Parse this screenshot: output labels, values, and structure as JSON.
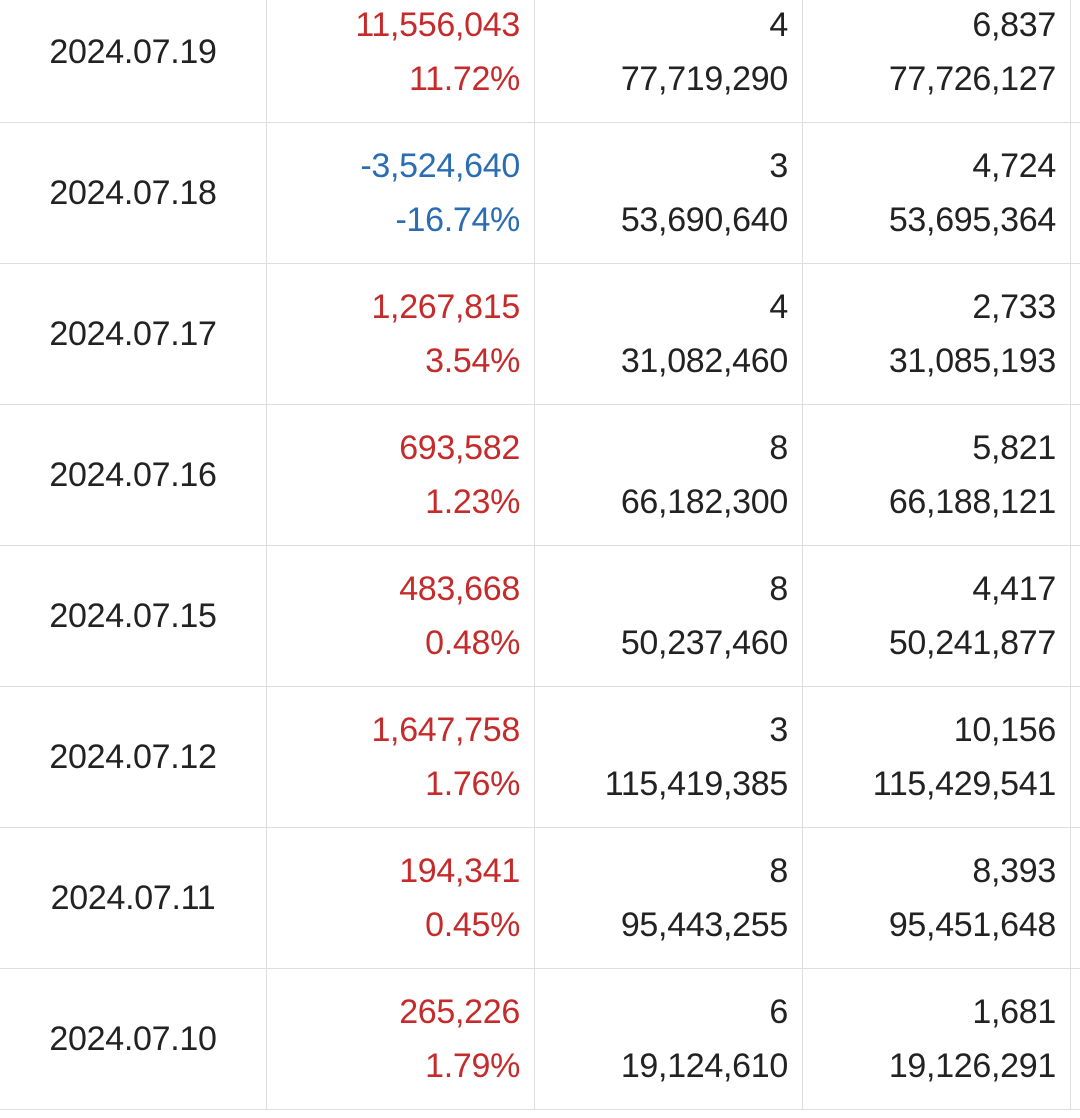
{
  "colors": {
    "up": "#c62b2b",
    "down": "#2a6db3",
    "text": "#222222",
    "grid": "#dedede"
  },
  "rows": [
    {
      "date": "2024.07.19",
      "change": "11,556,043",
      "change_pct": "11.72%",
      "direction": "up",
      "a_top": "4",
      "a_bottom": "77,719,290",
      "b_top": "6,837",
      "b_bottom": "77,726,127"
    },
    {
      "date": "2024.07.18",
      "change": "-3,524,640",
      "change_pct": "-16.74%",
      "direction": "down",
      "a_top": "3",
      "a_bottom": "53,690,640",
      "b_top": "4,724",
      "b_bottom": "53,695,364"
    },
    {
      "date": "2024.07.17",
      "change": "1,267,815",
      "change_pct": "3.54%",
      "direction": "up",
      "a_top": "4",
      "a_bottom": "31,082,460",
      "b_top": "2,733",
      "b_bottom": "31,085,193"
    },
    {
      "date": "2024.07.16",
      "change": "693,582",
      "change_pct": "1.23%",
      "direction": "up",
      "a_top": "8",
      "a_bottom": "66,182,300",
      "b_top": "5,821",
      "b_bottom": "66,188,121"
    },
    {
      "date": "2024.07.15",
      "change": "483,668",
      "change_pct": "0.48%",
      "direction": "up",
      "a_top": "8",
      "a_bottom": "50,237,460",
      "b_top": "4,417",
      "b_bottom": "50,241,877"
    },
    {
      "date": "2024.07.12",
      "change": "1,647,758",
      "change_pct": "1.76%",
      "direction": "up",
      "a_top": "3",
      "a_bottom": "115,419,385",
      "b_top": "10,156",
      "b_bottom": "115,429,541"
    },
    {
      "date": "2024.07.11",
      "change": "194,341",
      "change_pct": "0.45%",
      "direction": "up",
      "a_top": "8",
      "a_bottom": "95,443,255",
      "b_top": "8,393",
      "b_bottom": "95,451,648"
    },
    {
      "date": "2024.07.10",
      "change": "265,226",
      "change_pct": "1.79%",
      "direction": "up",
      "a_top": "6",
      "a_bottom": "19,124,610",
      "b_top": "1,681",
      "b_bottom": "19,126,291"
    }
  ]
}
